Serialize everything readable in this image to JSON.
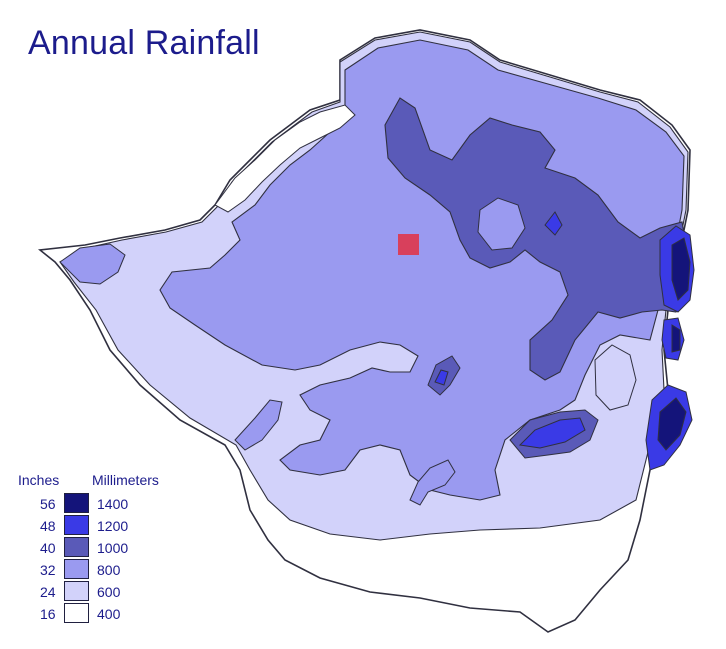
{
  "title": "Annual Rainfall",
  "legend": {
    "inches_heading": "Inches",
    "mm_heading": "Millimeters",
    "classes": [
      {
        "inches": "56",
        "mm": "1400",
        "color": "#14147a"
      },
      {
        "inches": "48",
        "mm": "1200",
        "color": "#3a3ae6"
      },
      {
        "inches": "40",
        "mm": "1000",
        "color": "#5a5ab8"
      },
      {
        "inches": "32",
        "mm": "800",
        "color": "#9a9af0"
      },
      {
        "inches": "24",
        "mm": "600",
        "color": "#d2d2fa"
      },
      {
        "inches": "16",
        "mm": "400",
        "color": "#ffffff"
      }
    ]
  },
  "colors": {
    "title": "#1c1c8c",
    "marker": "#d8405c",
    "border": "#303040"
  },
  "marker_icon": "square-marker-icon"
}
